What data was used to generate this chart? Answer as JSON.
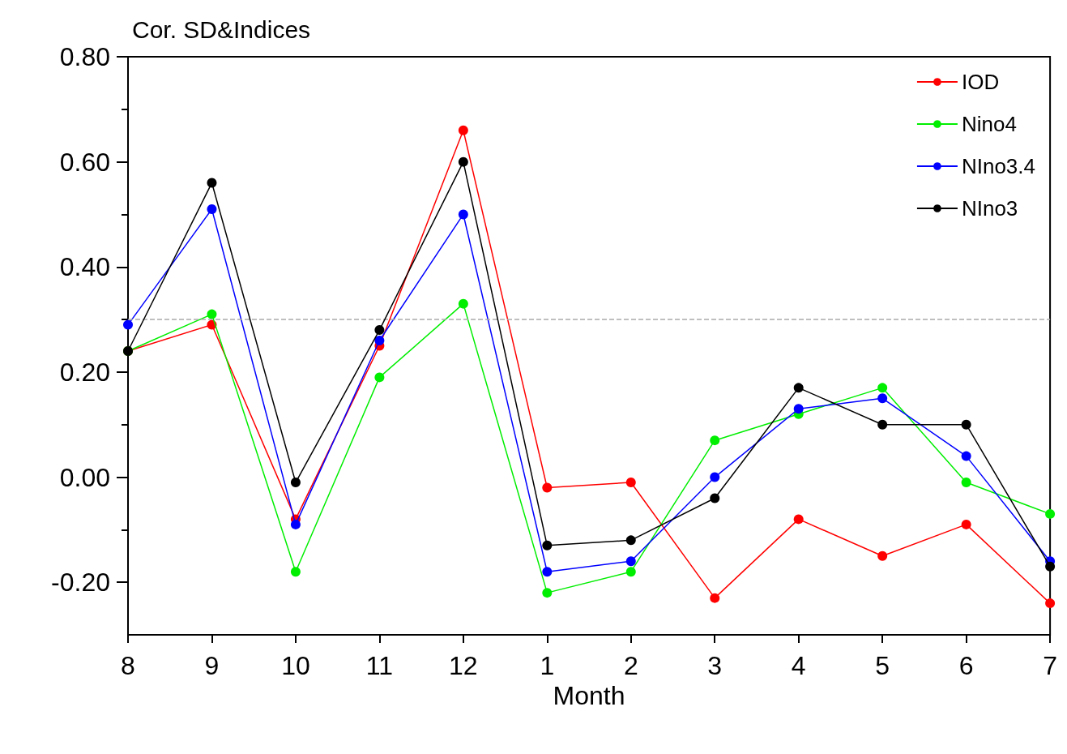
{
  "chart_data": {
    "type": "line",
    "title": "Cor. SD&Indices",
    "xlabel": "Month",
    "categories": [
      "8",
      "9",
      "10",
      "11",
      "12",
      "1",
      "2",
      "3",
      "4",
      "5",
      "6",
      "7"
    ],
    "series": [
      {
        "name": "IOD",
        "color": "#ff0000",
        "values": [
          0.24,
          0.29,
          -0.08,
          0.25,
          0.66,
          -0.02,
          -0.01,
          -0.23,
          -0.08,
          -0.15,
          -0.09,
          -0.24
        ]
      },
      {
        "name": "Nino4",
        "color": "#00ee00",
        "values": [
          0.24,
          0.31,
          -0.18,
          0.19,
          0.33,
          -0.22,
          -0.18,
          0.07,
          0.12,
          0.17,
          -0.01,
          -0.07
        ]
      },
      {
        "name": "NIno3.4",
        "color": "#0000ff",
        "values": [
          0.29,
          0.51,
          -0.09,
          0.26,
          0.5,
          -0.18,
          -0.16,
          0,
          0.13,
          0.15,
          0.04,
          -0.16
        ]
      },
      {
        "name": "NIno3",
        "color": "#000000",
        "values": [
          0.24,
          0.56,
          -0.01,
          0.28,
          0.6,
          -0.13,
          -0.12,
          -0.04,
          0.17,
          0.1,
          0.1,
          -0.17
        ]
      }
    ],
    "ylim": [
      -0.3,
      0.8
    ],
    "yticks": [
      {
        "value": -0.2,
        "label": "-0.20"
      },
      {
        "value": 0,
        "label": "0.00"
      },
      {
        "value": 0.2,
        "label": "0.20"
      },
      {
        "value": 0.4,
        "label": "0.40"
      },
      {
        "value": 0.6,
        "label": "0.60"
      },
      {
        "value": 0.8,
        "label": "0.80"
      }
    ],
    "ref_lines": [
      {
        "axis": "y",
        "value": 0.3,
        "color": "#aaaaaa",
        "line_style": "dashed"
      }
    ],
    "grid": false,
    "legend": "top right",
    "marker": "circle",
    "line_style": "solid"
  }
}
